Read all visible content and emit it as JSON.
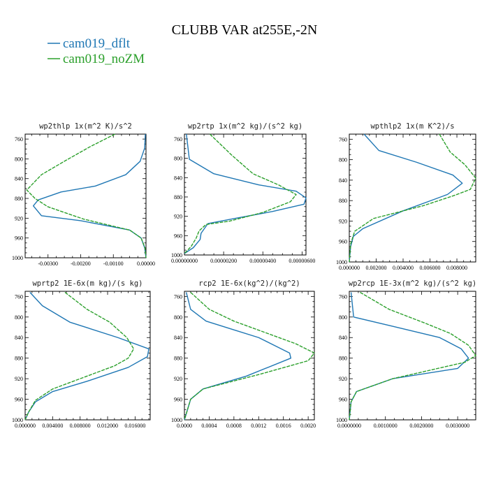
{
  "title": "CLUBB VAR at255E,-2N",
  "legend": [
    {
      "label": "cam019_dflt",
      "color": "#1f77b4"
    },
    {
      "label": "cam019_noZM",
      "color": "#2ca02c"
    }
  ],
  "chart_data": [
    {
      "type": "line",
      "title": "wp2thlp  1x(m^2 K)/s^2",
      "xlim": [
        -0.0037,
        0.0
      ],
      "ylim": [
        1000,
        750
      ],
      "xticks": [
        -0.003,
        -0.002,
        -0.001,
        0.0
      ],
      "xtick_labels": [
        "-0.00300",
        "-0.00200",
        "-0.00100",
        "0.00000"
      ],
      "yticks": [
        760,
        800,
        840,
        880,
        920,
        960,
        1000
      ],
      "series": [
        {
          "name": "cam019_dflt",
          "color": "#1f77b4",
          "x": [
            -2e-05,
            -4e-05,
            -0.00018,
            -0.00062,
            -0.00155,
            -0.0026,
            -0.0033,
            -0.00345,
            -0.0032,
            -0.002,
            -0.0005,
            -0.00015,
            -4e-05,
            0.0
          ],
          "y": [
            750,
            778,
            805,
            832,
            855,
            867,
            883,
            895,
            915,
            925,
            944,
            960,
            980,
            1000
          ]
        },
        {
          "name": "cam019_noZM",
          "color": "#2ca02c",
          "x": [
            -0.00095,
            -0.0017,
            -0.00245,
            -0.0032,
            -0.00365,
            -0.0034,
            -0.003,
            -0.0019,
            -0.0005,
            -0.00015,
            -3e-05,
            0.0
          ],
          "y": [
            750,
            775,
            803,
            832,
            863,
            880,
            897,
            922,
            944,
            960,
            980,
            1000
          ]
        }
      ]
    },
    {
      "type": "line",
      "title": "wp2rtp  1x(m^2 kg)/(s^2 kg)",
      "xlim": [
        0.0,
        6.2e-06
      ],
      "ylim": [
        1000,
        750
      ],
      "xticks": [
        0.0,
        2e-06,
        4e-06,
        6e-06
      ],
      "xtick_labels": [
        "0.00000000",
        "0.00000200",
        "0.00000400",
        "0.00000600"
      ],
      "yticks": [
        760,
        800,
        840,
        880,
        920,
        960,
        1000
      ],
      "series": [
        {
          "name": "cam019_dflt",
          "color": "#1f77b4",
          "x": [
            1e-07,
            2.5e-07,
            1.5e-06,
            3.8e-06,
            5.7e-06,
            6.2e-06,
            6.1e-06,
            4.5e-06,
            2.5e-06,
            1.2e-06,
            8.5e-07,
            8e-07,
            4.5e-07,
            0.0
          ],
          "y": [
            750,
            802,
            832,
            855,
            868,
            882,
            895,
            910,
            925,
            935,
            955,
            968,
            985,
            997
          ]
        },
        {
          "name": "cam019_noZM",
          "color": "#2ca02c",
          "x": [
            1.3e-06,
            2.4e-06,
            3.5e-06,
            4.8e-06,
            5.7e-06,
            5.4e-06,
            4e-06,
            2.3e-06,
            1.1e-06,
            7.5e-07,
            6e-07,
            3.5e-07,
            0.0
          ],
          "y": [
            750,
            793,
            832,
            855,
            875,
            890,
            912,
            930,
            937,
            950,
            965,
            982,
            997
          ]
        }
      ]
    },
    {
      "type": "line",
      "title": "wpthlp2  1x(m K^2)/s",
      "xlim": [
        0.0,
        0.0094
      ],
      "ylim": [
        1000,
        750
      ],
      "xticks": [
        0.0,
        0.002,
        0.004,
        0.006,
        0.008
      ],
      "xtick_labels": [
        "0.000000",
        "0.002000",
        "0.004000",
        "0.006000",
        "0.008000"
      ],
      "yticks": [
        760,
        800,
        840,
        880,
        920,
        960,
        1000
      ],
      "series": [
        {
          "name": "cam019_dflt",
          "color": "#1f77b4",
          "x": [
            0.0011,
            0.0022,
            0.005,
            0.0077,
            0.0084,
            0.0073,
            0.004,
            0.001,
            0.0003,
            0.0001,
            0.0
          ],
          "y": [
            750,
            782,
            805,
            830,
            846,
            868,
            900,
            935,
            950,
            970,
            1000
          ]
        },
        {
          "name": "cam019_noZM",
          "color": "#2ca02c",
          "x": [
            0.0067,
            0.0075,
            0.0086,
            0.0094,
            0.009,
            0.0078,
            0.0055,
            0.0018,
            0.0004,
            0.0001,
            0.0
          ],
          "y": [
            750,
            785,
            810,
            836,
            858,
            870,
            890,
            915,
            940,
            965,
            1000
          ]
        }
      ]
    },
    {
      "type": "line",
      "title": "wprtp2  1E-6x(m kg)/(s kg)",
      "xlim": [
        0.0,
        0.0182
      ],
      "ylim": [
        1000,
        750
      ],
      "xticks": [
        0.0,
        0.004,
        0.008,
        0.012,
        0.016
      ],
      "xtick_labels": [
        "0.000000",
        "0.004000",
        "0.008000",
        "0.012000",
        "0.016000"
      ],
      "yticks": [
        760,
        800,
        840,
        880,
        920,
        960,
        1000
      ],
      "series": [
        {
          "name": "cam019_dflt",
          "color": "#1f77b4",
          "x": [
            0.0007,
            0.0025,
            0.0065,
            0.0135,
            0.018,
            0.0178,
            0.015,
            0.009,
            0.004,
            0.0015,
            0.0005,
            0.0
          ],
          "y": [
            752,
            778,
            810,
            840,
            862,
            877,
            898,
            925,
            945,
            965,
            985,
            1000
          ]
        },
        {
          "name": "cam019_noZM",
          "color": "#2ca02c",
          "x": [
            0.0058,
            0.009,
            0.0123,
            0.0148,
            0.0158,
            0.015,
            0.013,
            0.009,
            0.004,
            0.0015,
            0.0005,
            0.0
          ],
          "y": [
            752,
            785,
            810,
            840,
            862,
            880,
            895,
            915,
            940,
            962,
            985,
            1000
          ]
        }
      ]
    },
    {
      "type": "line",
      "title": "rcp2  1E-6x(kg^2)/(kg^2)",
      "xlim": [
        0.0,
        0.0021
      ],
      "ylim": [
        1000,
        750
      ],
      "xticks": [
        0.0,
        0.0004,
        0.0008,
        0.0012,
        0.0016,
        0.002
      ],
      "xtick_labels": [
        "0.0000",
        "0.0004",
        "0.0008",
        "0.0012",
        "0.0016",
        "0.0020"
      ],
      "yticks": [
        760,
        800,
        840,
        880,
        920,
        960,
        1000
      ],
      "series": [
        {
          "name": "cam019_dflt",
          "color": "#1f77b4",
          "x": [
            3e-05,
            0.0001,
            0.00035,
            0.0008,
            0.0012,
            0.0015,
            0.0017,
            0.00172,
            0.001,
            0.0003,
            0.0001,
            5e-05,
            0.0
          ],
          "y": [
            752,
            785,
            808,
            825,
            840,
            858,
            870,
            880,
            915,
            940,
            960,
            980,
            1000
          ]
        },
        {
          "name": "cam019_noZM",
          "color": "#2ca02c",
          "x": [
            0.0001,
            0.0004,
            0.0008,
            0.0013,
            0.0018,
            0.0021,
            0.002,
            0.0012,
            0.0003,
            0.0001,
            5e-05,
            0.0
          ],
          "y": [
            752,
            785,
            808,
            830,
            852,
            870,
            885,
            912,
            940,
            960,
            980,
            1000
          ]
        }
      ]
    },
    {
      "type": "line",
      "title": "wp2rcp  1E-3x(m^2 kg)/(s^2 kg)",
      "xlim": [
        0.0,
        0.0035
      ],
      "ylim": [
        1000,
        750
      ],
      "xticks": [
        0.0,
        0.001,
        0.002,
        0.003
      ],
      "xtick_labels": [
        "0.0000000",
        "0.0010000",
        "0.0020000",
        "0.0030000"
      ],
      "yticks": [
        760,
        800,
        840,
        880,
        920,
        960,
        1000
      ],
      "series": [
        {
          "name": "cam019_dflt",
          "color": "#1f77b4",
          "x": [
            5e-05,
            0.00012,
            0.0012,
            0.0025,
            0.0031,
            0.0033,
            0.003,
            0.0012,
            0.0002,
            5e-05,
            0.0
          ],
          "y": [
            752,
            800,
            818,
            840,
            862,
            880,
            900,
            920,
            945,
            965,
            1000
          ]
        },
        {
          "name": "cam019_noZM",
          "color": "#2ca02c",
          "x": [
            0.0003,
            0.0011,
            0.0021,
            0.0028,
            0.0033,
            0.0035,
            0.0032,
            0.0012,
            0.0002,
            5e-05,
            0.0
          ],
          "y": [
            752,
            785,
            812,
            832,
            855,
            875,
            888,
            920,
            945,
            965,
            1000
          ]
        }
      ]
    }
  ]
}
